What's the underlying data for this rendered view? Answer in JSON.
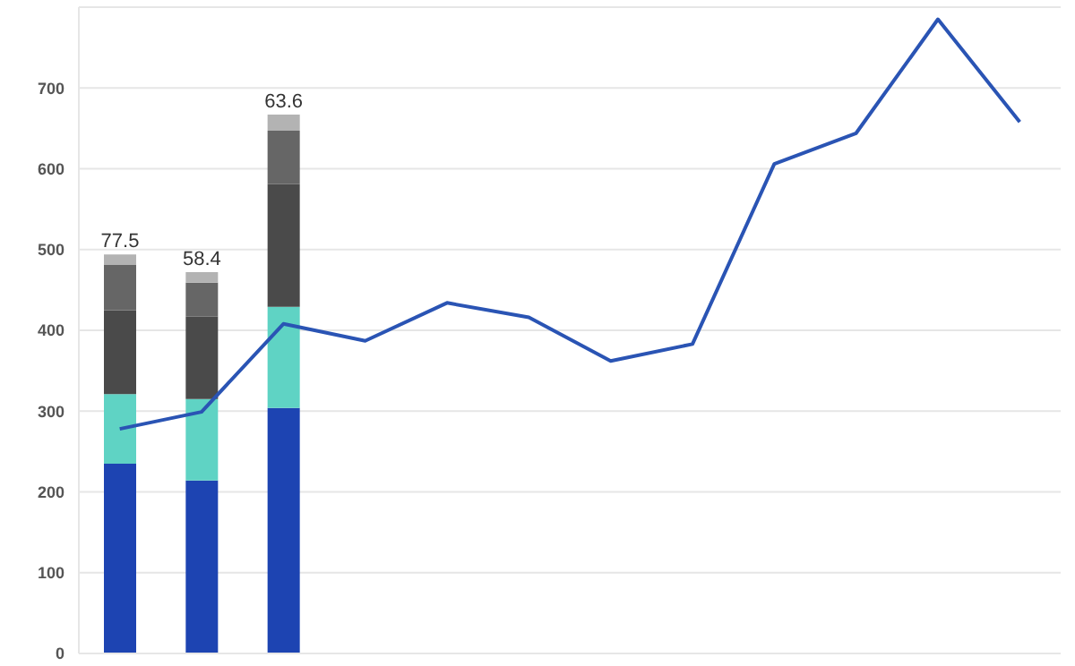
{
  "chart_data": {
    "type": "bar",
    "stacked": true,
    "categories": [
      null,
      null,
      null,
      null,
      null,
      null,
      null,
      null,
      null,
      null,
      null,
      null
    ],
    "series": [
      {
        "color": "#1d44b2",
        "values": [
          235,
          214,
          304,
          null,
          null,
          null,
          null,
          null,
          null,
          null,
          null,
          null
        ]
      },
      {
        "color": "#5fd3c4",
        "values": [
          86,
          101,
          125,
          null,
          null,
          null,
          null,
          null,
          null,
          null,
          null,
          null
        ]
      },
      {
        "color": "#4a4a4a",
        "values": [
          104,
          102,
          152,
          null,
          null,
          null,
          null,
          null,
          null,
          null,
          null,
          null
        ]
      },
      {
        "color": "#666666",
        "values": [
          56,
          42,
          66,
          null,
          null,
          null,
          null,
          null,
          null,
          null,
          null,
          null
        ]
      },
      {
        "color": "#b3b3b3",
        "values": [
          13,
          13,
          20,
          null,
          null,
          null,
          null,
          null,
          null,
          null,
          null,
          null
        ]
      },
      {
        "type": "line",
        "color": "#2a54b4",
        "values": [
          278,
          299,
          408,
          387,
          434,
          416,
          362,
          383,
          606,
          644,
          785,
          658
        ]
      }
    ],
    "annotations": [
      "77.5",
      "58.4",
      "63.6"
    ],
    "ylim": [
      0,
      800
    ],
    "yticks": [
      0,
      100,
      200,
      300,
      400,
      500,
      600,
      700
    ],
    "grid": "y",
    "tick_labels": "y",
    "marker": "none",
    "line_style": "solid"
  }
}
